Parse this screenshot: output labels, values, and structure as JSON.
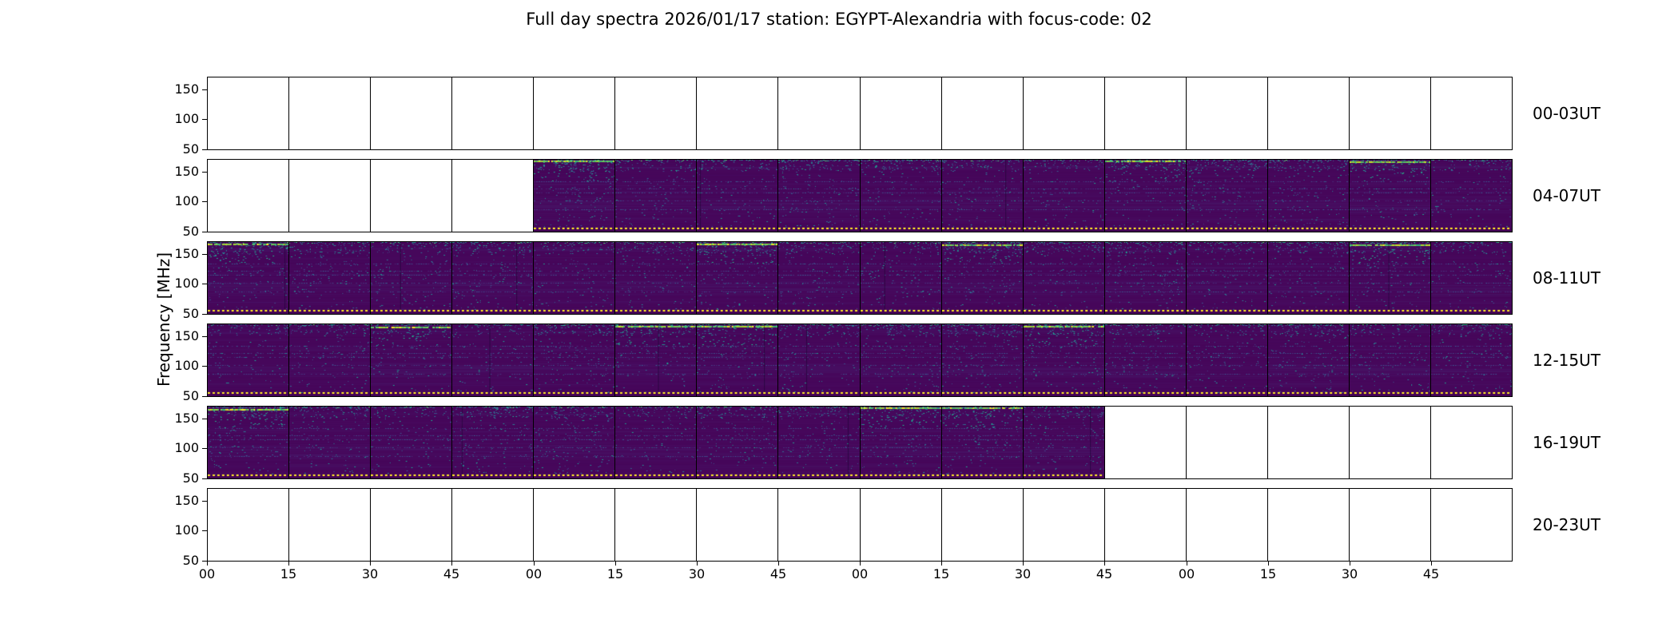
{
  "chart_data": {
    "type": "heatmap",
    "title": "Full day spectra 2026/01/17 station: EGYPT-Alexandria with focus-code: 02",
    "date": "2026/01/17",
    "station": "EGYPT-Alexandria",
    "focus_code": "02",
    "ylabel": "Frequency [MHz]",
    "ylim": [
      48,
      172
    ],
    "yticks": [
      150,
      100,
      50
    ],
    "x_tick_labels": [
      "00",
      "15",
      "30",
      "45",
      "00",
      "15",
      "30",
      "45",
      "00",
      "15",
      "30",
      "45",
      "00",
      "15",
      "30",
      "45"
    ],
    "minutes_per_cell": 15,
    "hours_per_row": 4,
    "colormap": "viridis",
    "colors": {
      "figure_background": "#ffffff",
      "axis_color": "#000000",
      "interference_line": "#fde725",
      "viridis_stops": [
        [
          0,
          "#440154"
        ],
        [
          0.12,
          "#46085c"
        ],
        [
          0.25,
          "#46327e"
        ],
        [
          0.37,
          "#3b518b"
        ],
        [
          0.5,
          "#2c718e"
        ],
        [
          0.62,
          "#21908c"
        ],
        [
          0.75,
          "#27ad81"
        ],
        [
          0.85,
          "#5cc863"
        ],
        [
          0.95,
          "#bade28"
        ],
        [
          1,
          "#fde725"
        ]
      ]
    },
    "rows": [
      {
        "label": "00-03UT",
        "cells": 16,
        "filled_start": 0,
        "filled_end": 0,
        "highlight_cells": [],
        "visible_data_range": "none"
      },
      {
        "label": "04-07UT",
        "cells": 16,
        "filled_start": 4,
        "filled_end": 16,
        "highlight_cells": [
          4,
          11,
          14
        ],
        "visible_data_range": "05:00-07:59"
      },
      {
        "label": "08-11UT",
        "cells": 16,
        "filled_start": 0,
        "filled_end": 16,
        "highlight_cells": [
          0,
          6,
          9,
          14
        ],
        "visible_data_range": "08:00-11:59"
      },
      {
        "label": "12-15UT",
        "cells": 16,
        "filled_start": 0,
        "filled_end": 16,
        "highlight_cells": [
          2,
          5,
          6,
          10
        ],
        "visible_data_range": "12:00-15:59"
      },
      {
        "label": "16-19UT",
        "cells": 16,
        "filled_start": 0,
        "filled_end": 11,
        "highlight_cells": [
          0,
          8,
          9
        ],
        "visible_data_range": "16:00-18:44"
      },
      {
        "label": "20-23UT",
        "cells": 16,
        "filled_start": 0,
        "filled_end": 0,
        "highlight_cells": [],
        "visible_data_range": "none"
      }
    ]
  }
}
